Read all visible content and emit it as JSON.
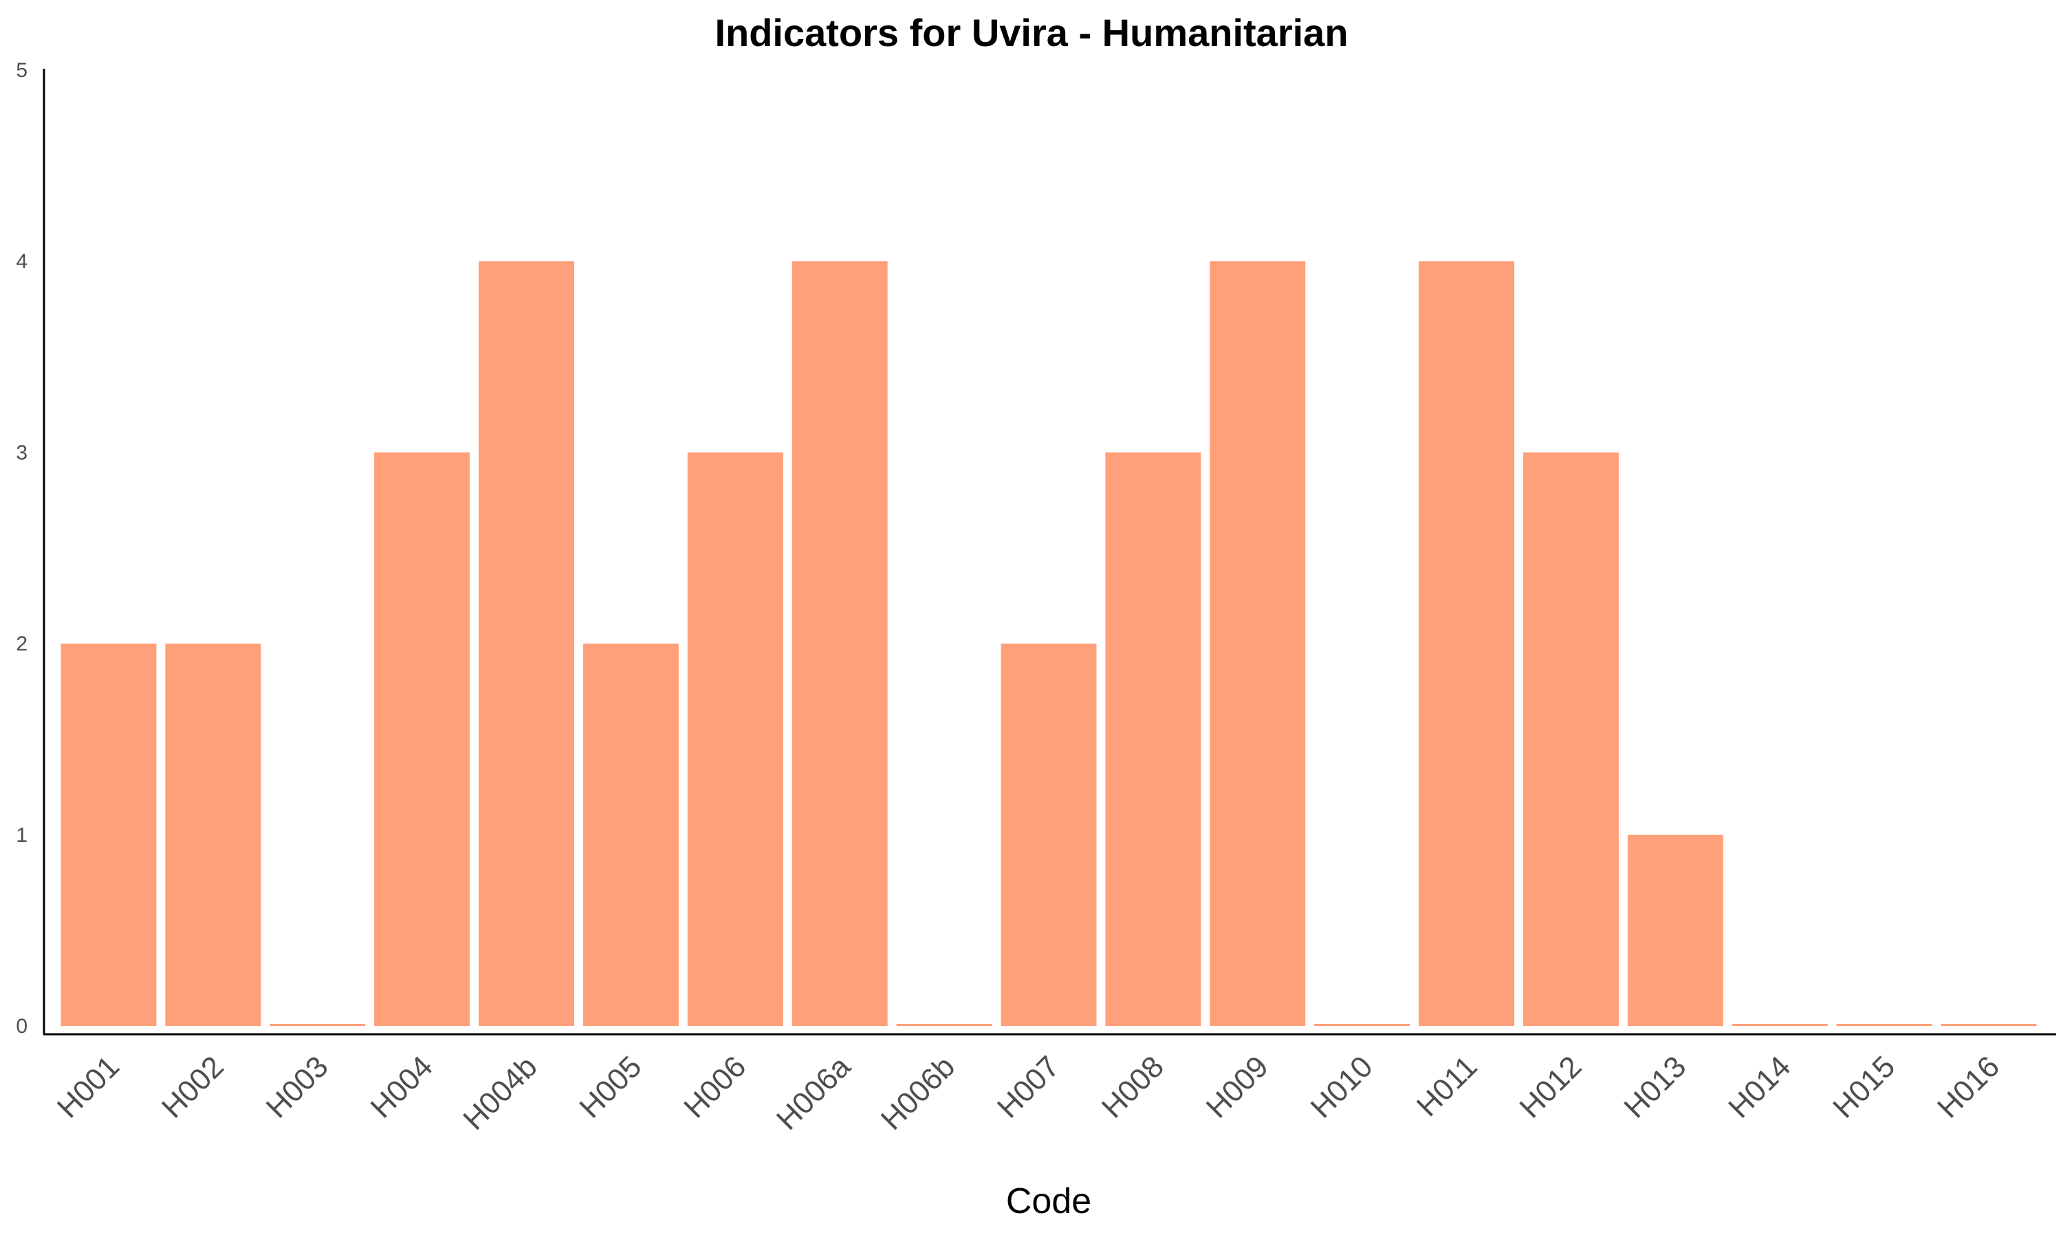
{
  "chart_data": {
    "type": "bar",
    "title": "Indicators for Uvira - Humanitarian",
    "xlabel": "Code",
    "ylabel": "",
    "categories": [
      "H001",
      "H002",
      "H003",
      "H004",
      "H004b",
      "H005",
      "H006",
      "H006a",
      "H006b",
      "H007",
      "H008",
      "H009",
      "H010",
      "H011",
      "H012",
      "H013",
      "H014",
      "H015",
      "H016"
    ],
    "values": [
      2,
      2,
      0,
      3,
      4,
      2,
      3,
      4,
      0,
      2,
      3,
      4,
      0,
      4,
      3,
      1,
      0,
      0,
      0
    ],
    "ylim": [
      0,
      5
    ],
    "yticks": [
      0,
      1,
      2,
      3,
      4,
      5
    ],
    "grid": false,
    "bar_color": "#FFA07A",
    "axis_color": "#000000"
  }
}
